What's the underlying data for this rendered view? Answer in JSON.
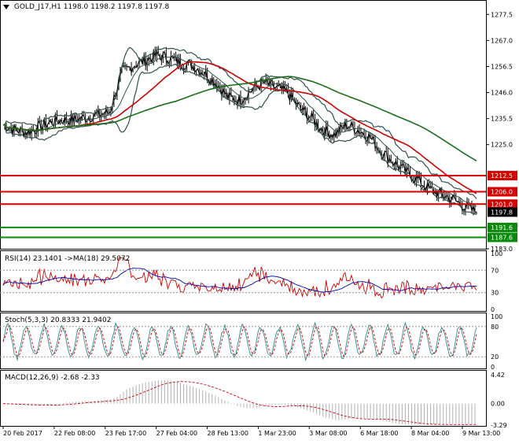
{
  "header": {
    "symbol_label": "GOLD_J17,H1",
    "ohlc_label": "1198.0 1198.2 1197.8 1197.8"
  },
  "main_axis": {
    "ticks": [
      "1277.5",
      "1267.0",
      "1256.5",
      "1246.0",
      "1235.5",
      "1225.0",
      "1183.0"
    ],
    "tick_values": [
      1277.5,
      1267.0,
      1256.5,
      1246.0,
      1235.5,
      1225.0,
      1183.0
    ]
  },
  "levels": {
    "resistance": [
      {
        "label": "1212.5",
        "value": 1212.5
      },
      {
        "label": "1206.0",
        "value": 1206.0
      },
      {
        "label": "1201.0",
        "value": 1201.0
      }
    ],
    "support": [
      {
        "label": "1191.6",
        "value": 1191.6
      },
      {
        "label": "1187.6",
        "value": 1187.6
      }
    ],
    "current": {
      "label": "1197.8",
      "value": 1197.8
    }
  },
  "x_axis": {
    "labels": [
      "20 Feb 2017",
      "22 Feb 08:00",
      "23 Feb 17:00",
      "27 Feb 04:00",
      "28 Feb 13:00",
      "1 Mar 23:00",
      "3 Mar 08:00",
      "6 Mar 18:00",
      "8 Mar 04:00",
      "9 Mar 13:00"
    ]
  },
  "rsi": {
    "title": "RSI(14) 23.1401 ->MA(18) 29.5072",
    "ticks": [
      "100",
      "70",
      "30",
      "0"
    ],
    "tick_values": [
      100,
      70,
      30,
      0
    ]
  },
  "stoch": {
    "title": "Stoch(5,3,3) 20.8333 21.9402",
    "ticks": [
      "100",
      "80",
      "20",
      "0"
    ],
    "tick_values": [
      100,
      80,
      20,
      0
    ]
  },
  "macd": {
    "title": "MACD(12,26,9) -2.68 -2.33",
    "ticks": [
      "4.42",
      "0.00",
      "-3.29"
    ],
    "tick_values": [
      4.42,
      0.0,
      -3.29
    ]
  },
  "colors": {
    "resistance": "#d40000",
    "support": "#0a8a0a",
    "price": "#000000",
    "bollinger": "#2f4f4f",
    "ma_fast": "#cc0000",
    "ma_slow": "#1a6e1a",
    "rsi_line": "#cc0000",
    "rsi_ma": "#0000aa",
    "stoch_main": "#2a8a8a",
    "stoch_signal": "#cc0000",
    "macd_hist": "#b0b0b0",
    "macd_signal": "#cc0000"
  },
  "chart_data": {
    "type": "line",
    "series": [
      {
        "values": [
          1233,
          1231,
          1230,
          1232,
          1234,
          1235,
          1235,
          1236,
          1237,
          1238,
          1254,
          1257,
          1259,
          1261,
          1260,
          1258,
          1257,
          1254,
          1250,
          1244,
          1243,
          1247,
          1250,
          1248,
          1246,
          1240,
          1236,
          1231,
          1229,
          1233,
          1231,
          1228,
          1222,
          1218,
          1214,
          1211,
          1207,
          1205,
          1203,
          1200,
          1197.8
        ]
      }
    ],
    "ylim": [
      1183,
      1283
    ]
  }
}
